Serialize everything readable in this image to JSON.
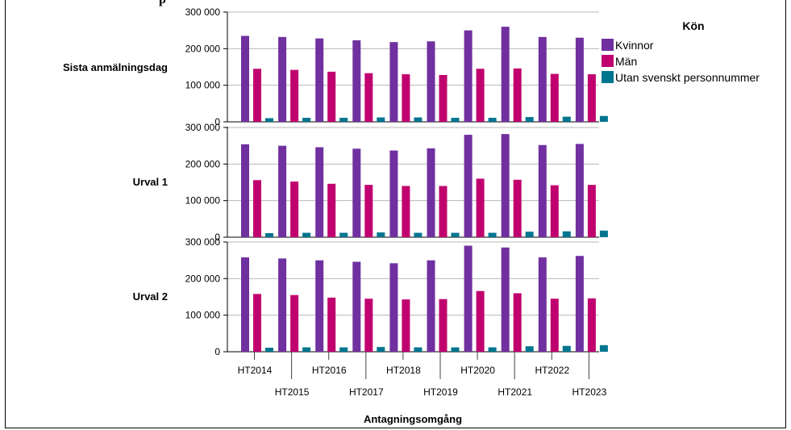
{
  "chart_data": {
    "type": "bar",
    "x_axis_title": "Antagningsomgång",
    "categories": [
      "HT2014",
      "HT2015",
      "HT2016",
      "HT2017",
      "HT2018",
      "HT2019",
      "HT2020",
      "HT2021",
      "HT2022",
      "HT2023"
    ],
    "legend": {
      "title": "Kön",
      "placement": "right",
      "entries": [
        "Kvinnor",
        "Män",
        "Utan svenskt personnummer"
      ]
    },
    "y_ticks": [
      0,
      100000,
      200000,
      300000
    ],
    "y_tick_labels": [
      "0",
      "100 000",
      "200 000",
      "300 000"
    ],
    "ylim": [
      0,
      330000
    ],
    "colors": {
      "Kvinnor": "#7030a0",
      "Män": "#c0006e",
      "Utan svenskt personnummer": "#00758f"
    },
    "panels": [
      {
        "label": "Sista anmälningsdag",
        "series": [
          {
            "name": "Kvinnor",
            "values": [
              235000,
              232000,
              228000,
              223000,
              218000,
              220000,
              250000,
              260000,
              232000,
              230000
            ]
          },
          {
            "name": "Män",
            "values": [
              145000,
              142000,
              137000,
              133000,
              130000,
              128000,
              145000,
              146000,
              131000,
              130000
            ]
          },
          {
            "name": "Utan svenskt personnummer",
            "values": [
              10000,
              11000,
              11000,
              12000,
              12000,
              11000,
              11000,
              13000,
              14000,
              16000
            ]
          }
        ]
      },
      {
        "label": "Urval 1",
        "series": [
          {
            "name": "Kvinnor",
            "values": [
              254000,
              250000,
              246000,
              242000,
              237000,
              243000,
              280000,
              282000,
              252000,
              255000
            ]
          },
          {
            "name": "Män",
            "values": [
              156000,
              152000,
              146000,
              143000,
              140000,
              140000,
              160000,
              157000,
              142000,
              143000
            ]
          },
          {
            "name": "Utan svenskt personnummer",
            "values": [
              11000,
              12000,
              12000,
              13000,
              12000,
              12000,
              12000,
              15000,
              16000,
              18000
            ]
          }
        ]
      },
      {
        "label": "Urval 2",
        "series": [
          {
            "name": "Kvinnor",
            "values": [
              258000,
              255000,
              250000,
              246000,
              242000,
              250000,
              290000,
              285000,
              258000,
              262000
            ]
          },
          {
            "name": "Män",
            "values": [
              158000,
              155000,
              148000,
              145000,
              143000,
              144000,
              166000,
              160000,
              145000,
              146000
            ]
          },
          {
            "name": "Utan svenskt personnummer",
            "values": [
              11000,
              12000,
              12000,
              13000,
              12000,
              12000,
              12000,
              15000,
              16000,
              18000
            ]
          }
        ]
      }
    ]
  }
}
